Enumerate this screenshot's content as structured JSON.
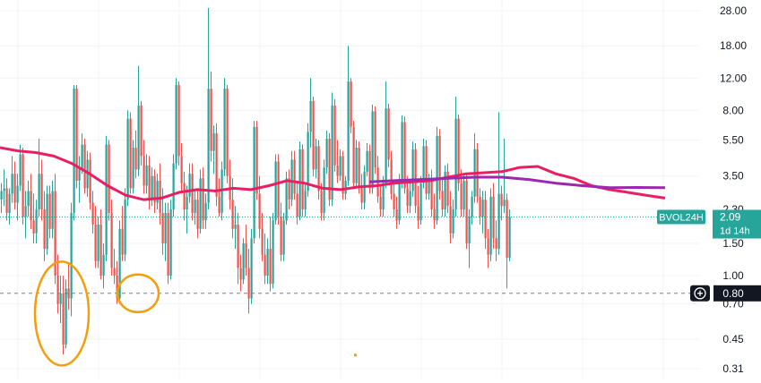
{
  "chart_data": {
    "type": "candlestick",
    "scale": "log",
    "ylim": [
      0.29,
      30
    ],
    "yticks": [
      0.31,
      0.45,
      0.7,
      1.0,
      1.5,
      2.3,
      3.5,
      5.5,
      8.0,
      12.0,
      18.0,
      28.0
    ],
    "ytick_labels": [
      "0.31",
      "0.45",
      "0.70",
      "1.00",
      "1.50",
      "2.30",
      "3.50",
      "5.50",
      "8.00",
      "12.00",
      "18.00",
      "28.00"
    ],
    "grid": true,
    "colors": {
      "up": "#26a69a",
      "down": "#ef5350",
      "ma_fast": "#e91e63",
      "ma_slow": "#9c27b0",
      "annotation": "#f59e0b",
      "crosshair_label": "#131722"
    },
    "series_label": {
      "symbol": "BVOL24H",
      "value": "2.09",
      "countdown": "1d 14h",
      "last_value": 2.09
    },
    "crosshair": {
      "value": 0.8,
      "label": "0.80"
    },
    "candles_step": 3,
    "candles": [
      [
        2.6,
        3.2,
        2.2,
        2.9
      ],
      [
        2.9,
        3.8,
        2.4,
        3.0
      ],
      [
        3.0,
        3.4,
        2.0,
        2.2
      ],
      [
        2.2,
        3.0,
        1.9,
        2.8
      ],
      [
        2.8,
        4.5,
        2.5,
        3.6
      ],
      [
        3.6,
        4.2,
        2.3,
        2.5
      ],
      [
        2.5,
        3.6,
        2.0,
        3.1
      ],
      [
        3.1,
        5.2,
        2.9,
        4.6
      ],
      [
        4.6,
        5.0,
        1.9,
        2.1
      ],
      [
        2.1,
        2.9,
        1.6,
        2.4
      ],
      [
        2.4,
        3.3,
        2.1,
        2.9
      ],
      [
        2.9,
        3.6,
        1.8,
        2.0
      ],
      [
        2.0,
        2.8,
        1.5,
        1.7
      ],
      [
        1.7,
        2.6,
        1.5,
        2.3
      ],
      [
        2.3,
        5.6,
        2.1,
        3.6
      ],
      [
        3.6,
        4.3,
        2.0,
        2.3
      ],
      [
        2.3,
        2.9,
        1.2,
        1.4
      ],
      [
        1.4,
        3.1,
        1.3,
        2.8
      ],
      [
        2.8,
        3.1,
        1.6,
        1.8
      ],
      [
        1.8,
        3.3,
        1.6,
        2.9
      ],
      [
        2.9,
        3.6,
        0.9,
        1.0
      ],
      [
        1.0,
        1.3,
        0.62,
        0.7
      ],
      [
        0.7,
        1.0,
        0.55,
        0.8
      ],
      [
        0.8,
        1.0,
        0.37,
        0.42
      ],
      [
        0.42,
        0.95,
        0.4,
        0.85
      ],
      [
        0.85,
        1.15,
        0.65,
        0.75
      ],
      [
        0.75,
        2.5,
        0.6,
        2.2
      ],
      [
        2.2,
        11.0,
        2.0,
        10.5
      ],
      [
        10.5,
        11.0,
        3.0,
        3.3
      ],
      [
        3.3,
        4.5,
        2.5,
        3.8
      ],
      [
        3.8,
        6.0,
        3.6,
        5.2
      ],
      [
        5.2,
        5.6,
        2.8,
        3.0
      ],
      [
        3.0,
        4.8,
        2.7,
        4.3
      ],
      [
        4.3,
        4.7,
        2.3,
        2.5
      ],
      [
        2.5,
        2.9,
        1.7,
        1.9
      ],
      [
        1.9,
        2.4,
        1.1,
        1.2
      ],
      [
        1.2,
        2.1,
        1.1,
        1.9
      ],
      [
        1.9,
        2.3,
        0.95,
        1.0
      ],
      [
        1.0,
        1.5,
        0.85,
        1.3
      ],
      [
        1.3,
        5.8,
        1.2,
        5.2
      ],
      [
        5.2,
        5.5,
        2.0,
        2.2
      ],
      [
        2.2,
        2.6,
        1.0,
        1.1
      ],
      [
        1.1,
        1.4,
        0.9,
        1.0
      ],
      [
        1.0,
        1.2,
        0.7,
        0.75
      ],
      [
        0.75,
        2.0,
        0.7,
        1.8
      ],
      [
        1.8,
        2.4,
        1.2,
        1.3
      ],
      [
        1.3,
        3.0,
        1.2,
        2.6
      ],
      [
        2.6,
        8.0,
        2.4,
        7.2
      ],
      [
        7.2,
        7.8,
        2.8,
        3.0
      ],
      [
        3.0,
        5.5,
        2.8,
        5.0
      ],
      [
        5.0,
        6.2,
        3.4,
        3.8
      ],
      [
        3.8,
        14.0,
        3.5,
        8.5
      ],
      [
        8.5,
        9.0,
        4.0,
        4.5
      ],
      [
        4.5,
        5.5,
        2.8,
        3.1
      ],
      [
        3.1,
        4.6,
        2.8,
        4.0
      ],
      [
        4.0,
        4.5,
        2.3,
        2.6
      ],
      [
        2.6,
        3.9,
        2.4,
        3.5
      ],
      [
        3.5,
        3.8,
        2.2,
        2.5
      ],
      [
        2.5,
        3.6,
        2.3,
        3.3
      ],
      [
        3.3,
        4.1,
        1.9,
        2.2
      ],
      [
        2.2,
        3.0,
        1.3,
        1.5
      ],
      [
        1.5,
        2.5,
        1.2,
        2.2
      ],
      [
        2.2,
        2.5,
        0.9,
        1.0
      ],
      [
        1.0,
        2.6,
        0.95,
        2.3
      ],
      [
        2.3,
        4.6,
        2.1,
        4.1
      ],
      [
        4.1,
        12.0,
        3.8,
        11.0
      ],
      [
        11.0,
        11.5,
        4.0,
        4.5
      ],
      [
        4.5,
        5.3,
        2.8,
        3.2
      ],
      [
        3.2,
        3.7,
        2.0,
        2.3
      ],
      [
        2.3,
        3.1,
        1.7,
        2.7
      ],
      [
        2.7,
        4.1,
        2.5,
        3.6
      ],
      [
        3.6,
        4.1,
        2.0,
        2.2
      ],
      [
        2.2,
        2.9,
        1.9,
        2.6
      ],
      [
        2.6,
        3.0,
        1.6,
        1.8
      ],
      [
        1.8,
        3.8,
        1.7,
        3.4
      ],
      [
        3.4,
        3.9,
        1.8,
        2.0
      ],
      [
        2.0,
        2.8,
        1.8,
        2.5
      ],
      [
        2.5,
        29.0,
        2.3,
        10.5
      ],
      [
        10.5,
        13.0,
        4.2,
        4.8
      ],
      [
        4.8,
        6.6,
        3.6,
        6.0
      ],
      [
        6.0,
        6.8,
        2.4,
        2.7
      ],
      [
        2.7,
        3.4,
        2.1,
        2.2
      ],
      [
        2.2,
        4.2,
        2.0,
        3.8
      ],
      [
        3.8,
        12.0,
        3.5,
        10.5
      ],
      [
        10.5,
        11.0,
        3.2,
        3.5
      ],
      [
        3.5,
        4.3,
        2.3,
        2.6
      ],
      [
        2.6,
        3.4,
        1.6,
        1.8
      ],
      [
        1.8,
        2.4,
        1.4,
        1.9
      ],
      [
        1.9,
        2.2,
        0.9,
        1.1
      ],
      [
        1.1,
        1.3,
        0.82,
        0.95
      ],
      [
        0.95,
        1.6,
        0.9,
        1.5
      ],
      [
        1.5,
        1.9,
        1.0,
        1.1
      ],
      [
        1.1,
        1.4,
        0.62,
        0.75
      ],
      [
        0.75,
        1.8,
        0.7,
        1.6
      ],
      [
        1.6,
        7.0,
        1.5,
        6.5
      ],
      [
        6.5,
        7.0,
        2.6,
        2.8
      ],
      [
        2.8,
        3.5,
        1.6,
        1.8
      ],
      [
        1.8,
        2.2,
        1.2,
        1.3
      ],
      [
        1.3,
        1.7,
        0.9,
        1.0
      ],
      [
        1.0,
        1.6,
        0.9,
        1.4
      ],
      [
        1.4,
        2.1,
        0.82,
        0.9
      ],
      [
        0.9,
        2.2,
        0.85,
        2.0
      ],
      [
        2.0,
        4.6,
        1.9,
        4.2
      ],
      [
        4.2,
        4.6,
        1.9,
        2.1
      ],
      [
        2.1,
        2.5,
        1.2,
        1.3
      ],
      [
        1.3,
        2.2,
        1.2,
        2.0
      ],
      [
        2.0,
        3.7,
        1.9,
        3.4
      ],
      [
        3.4,
        3.8,
        2.3,
        2.6
      ],
      [
        2.6,
        4.8,
        2.4,
        4.3
      ],
      [
        4.3,
        4.8,
        2.6,
        2.8
      ],
      [
        2.8,
        3.2,
        1.9,
        2.1
      ],
      [
        2.1,
        5.4,
        2.0,
        4.9
      ],
      [
        4.9,
        5.2,
        2.1,
        2.3
      ],
      [
        2.3,
        3.2,
        2.1,
        2.9
      ],
      [
        2.9,
        6.8,
        2.7,
        6.1
      ],
      [
        6.1,
        12.0,
        5.0,
        9.0
      ],
      [
        9.0,
        9.5,
        3.5,
        3.8
      ],
      [
        3.8,
        5.6,
        3.4,
        5.1
      ],
      [
        5.1,
        5.5,
        2.6,
        2.9
      ],
      [
        2.9,
        3.2,
        2.0,
        2.2
      ],
      [
        2.2,
        4.3,
        2.0,
        3.9
      ],
      [
        3.9,
        6.2,
        3.6,
        5.6
      ],
      [
        5.6,
        6.0,
        2.4,
        2.6
      ],
      [
        2.6,
        10.0,
        2.4,
        8.5
      ],
      [
        8.5,
        9.2,
        3.7,
        4.0
      ],
      [
        4.0,
        5.5,
        3.2,
        3.5
      ],
      [
        3.5,
        4.9,
        3.3,
        4.5
      ],
      [
        4.5,
        4.8,
        2.6,
        2.8
      ],
      [
        2.8,
        3.5,
        2.6,
        3.3
      ],
      [
        3.3,
        18.0,
        3.1,
        11.5
      ],
      [
        11.5,
        12.0,
        6.0,
        6.5
      ],
      [
        6.5,
        7.0,
        3.0,
        3.2
      ],
      [
        3.2,
        5.5,
        3.0,
        5.0
      ],
      [
        5.0,
        5.4,
        2.8,
        3.0
      ],
      [
        3.0,
        3.6,
        2.3,
        2.5
      ],
      [
        2.5,
        4.0,
        2.3,
        3.7
      ],
      [
        3.7,
        5.3,
        3.5,
        4.8
      ],
      [
        4.8,
        5.2,
        2.8,
        3.0
      ],
      [
        3.0,
        8.6,
        2.8,
        7.9
      ],
      [
        7.9,
        8.4,
        3.6,
        3.9
      ],
      [
        3.9,
        4.5,
        2.5,
        2.7
      ],
      [
        2.7,
        3.1,
        2.1,
        2.3
      ],
      [
        2.3,
        3.5,
        2.1,
        3.2
      ],
      [
        3.2,
        11.5,
        3.0,
        8.2
      ],
      [
        8.2,
        8.7,
        3.9,
        4.3
      ],
      [
        4.3,
        4.8,
        2.6,
        2.8
      ],
      [
        2.8,
        3.3,
        2.1,
        2.3
      ],
      [
        2.3,
        2.7,
        1.8,
        2.0
      ],
      [
        2.0,
        3.6,
        1.9,
        3.3
      ],
      [
        3.3,
        7.5,
        3.0,
        6.9
      ],
      [
        6.9,
        7.4,
        2.8,
        3.0
      ],
      [
        3.0,
        3.5,
        2.2,
        2.4
      ],
      [
        2.4,
        3.2,
        2.2,
        2.9
      ],
      [
        2.9,
        5.4,
        2.7,
        4.9
      ],
      [
        4.9,
        5.3,
        2.2,
        2.4
      ],
      [
        2.4,
        3.1,
        1.8,
        2.0
      ],
      [
        2.0,
        3.5,
        1.9,
        3.2
      ],
      [
        3.2,
        5.6,
        3.0,
        5.1
      ],
      [
        5.1,
        5.5,
        2.6,
        2.8
      ],
      [
        2.8,
        3.6,
        2.6,
        3.3
      ],
      [
        3.3,
        3.8,
        2.1,
        2.3
      ],
      [
        2.3,
        2.8,
        1.8,
        2.0
      ],
      [
        2.0,
        6.5,
        1.9,
        5.8
      ],
      [
        5.8,
        6.3,
        2.6,
        2.9
      ],
      [
        2.9,
        3.4,
        2.1,
        2.3
      ],
      [
        2.3,
        4.0,
        2.1,
        3.7
      ],
      [
        3.7,
        4.1,
        2.2,
        2.4
      ],
      [
        2.4,
        2.9,
        1.5,
        1.7
      ],
      [
        1.7,
        2.6,
        1.6,
        2.3
      ],
      [
        2.3,
        9.5,
        2.1,
        7.2
      ],
      [
        7.2,
        7.6,
        2.9,
        3.2
      ],
      [
        3.2,
        3.8,
        2.1,
        2.3
      ],
      [
        2.3,
        3.6,
        2.1,
        3.3
      ],
      [
        3.3,
        3.6,
        1.4,
        1.5
      ],
      [
        1.5,
        2.3,
        1.1,
        2.1
      ],
      [
        2.1,
        2.9,
        1.9,
        2.7
      ],
      [
        2.7,
        6.0,
        2.5,
        4.9
      ],
      [
        4.9,
        5.3,
        2.5,
        2.7
      ],
      [
        2.7,
        3.0,
        1.9,
        2.1
      ],
      [
        2.1,
        2.9,
        1.7,
        2.6
      ],
      [
        2.6,
        2.9,
        1.4,
        1.6
      ],
      [
        1.6,
        1.8,
        1.1,
        1.3
      ],
      [
        1.3,
        3.0,
        1.2,
        2.7
      ],
      [
        2.7,
        3.2,
        1.4,
        1.6
      ],
      [
        1.6,
        2.0,
        1.2,
        1.4
      ],
      [
        1.4,
        7.8,
        1.3,
        2.8
      ],
      [
        2.8,
        3.1,
        2.0,
        2.4
      ],
      [
        2.4,
        5.6,
        2.2,
        2.6
      ],
      [
        2.6,
        2.8,
        0.85,
        1.25
      ],
      [
        1.25,
        2.3,
        1.2,
        2.09
      ]
    ],
    "ma_fast": [
      [
        0,
        5.0
      ],
      [
        20,
        4.8
      ],
      [
        40,
        4.7
      ],
      [
        60,
        4.5
      ],
      [
        80,
        4.1
      ],
      [
        100,
        3.6
      ],
      [
        120,
        3.1
      ],
      [
        140,
        2.75
      ],
      [
        160,
        2.6
      ],
      [
        180,
        2.65
      ],
      [
        200,
        2.85
      ],
      [
        220,
        2.95
      ],
      [
        240,
        2.9
      ],
      [
        260,
        3.0
      ],
      [
        280,
        2.95
      ],
      [
        300,
        3.1
      ],
      [
        320,
        3.3
      ],
      [
        340,
        3.2
      ],
      [
        360,
        3.0
      ],
      [
        380,
        2.95
      ],
      [
        400,
        3.05
      ],
      [
        420,
        3.1
      ],
      [
        440,
        3.2
      ],
      [
        460,
        3.25
      ],
      [
        480,
        3.3
      ],
      [
        500,
        3.45
      ],
      [
        520,
        3.6
      ],
      [
        540,
        3.65
      ],
      [
        560,
        3.7
      ],
      [
        580,
        3.9
      ],
      [
        600,
        3.95
      ],
      [
        620,
        3.6
      ],
      [
        640,
        3.4
      ],
      [
        660,
        3.1
      ],
      [
        680,
        2.95
      ],
      [
        700,
        2.85
      ],
      [
        720,
        2.75
      ],
      [
        742,
        2.65
      ]
    ],
    "ma_slow": [
      [
        412,
        3.25
      ],
      [
        440,
        3.3
      ],
      [
        470,
        3.35
      ],
      [
        500,
        3.4
      ],
      [
        530,
        3.45
      ],
      [
        560,
        3.45
      ],
      [
        590,
        3.35
      ],
      [
        620,
        3.2
      ],
      [
        650,
        3.1
      ],
      [
        680,
        3.02
      ],
      [
        710,
        3.03
      ],
      [
        742,
        3.02
      ]
    ],
    "annotations": [
      {
        "type": "ellipse",
        "value": 0.62
      },
      {
        "type": "ellipse",
        "value": 0.8
      },
      {
        "type": "dot",
        "value": 0.37
      }
    ]
  }
}
